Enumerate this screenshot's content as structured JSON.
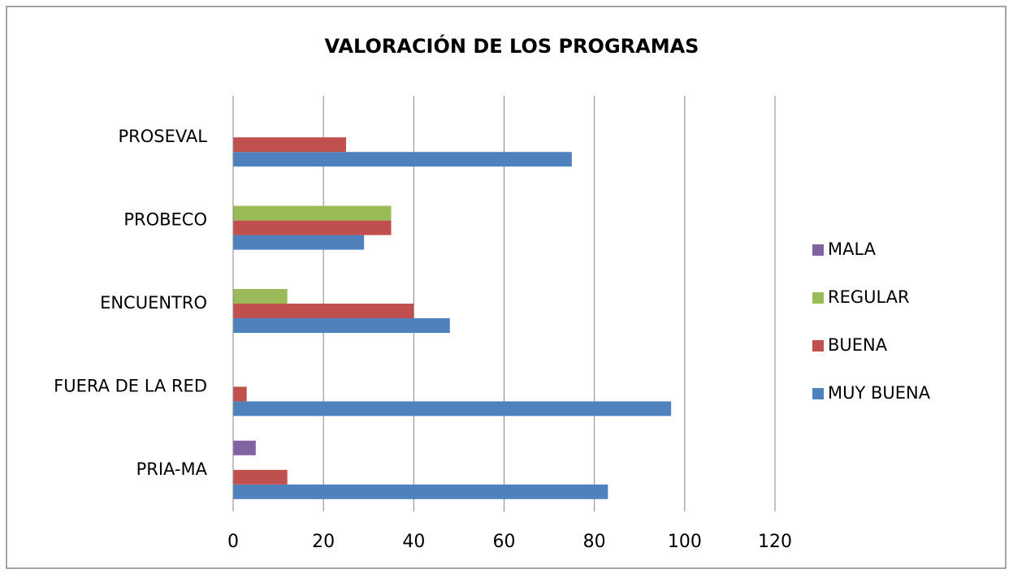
{
  "chart_data": {
    "type": "barh",
    "title": "VALORACIÓN DE LOS PROGRAMAS",
    "categories": [
      "PRIA-MA",
      "FUERA DE LA RED",
      "ENCUENTRO",
      "PROBECO",
      "PROSEVAL"
    ],
    "series": [
      {
        "name": "MUY BUENA",
        "color": "#4f81bd",
        "values": [
          83,
          97,
          48,
          29,
          75
        ]
      },
      {
        "name": "BUENA",
        "color": "#c0504d",
        "values": [
          12,
          3,
          40,
          35,
          25
        ]
      },
      {
        "name": "REGULAR",
        "color": "#9bbb59",
        "values": [
          null,
          null,
          12,
          35,
          null
        ]
      },
      {
        "name": "MALA",
        "color": "#8064a2",
        "values": [
          5,
          null,
          null,
          null,
          null
        ]
      }
    ],
    "xlim": [
      0,
      120
    ],
    "xticks": [
      0,
      20,
      40,
      60,
      80,
      100,
      120
    ],
    "grid": true,
    "legend": "right"
  }
}
